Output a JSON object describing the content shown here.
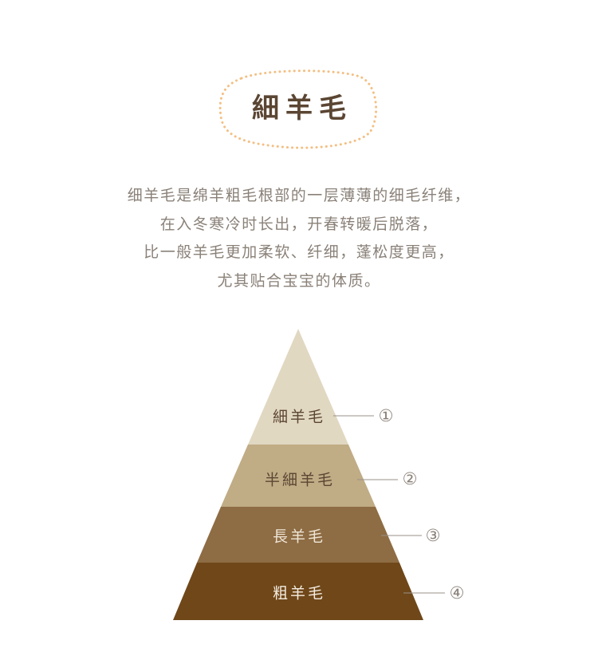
{
  "title": "細羊毛",
  "description": [
    "细羊毛是绵羊粗毛根部的一层薄薄的细毛纤维，",
    "在入冬寒冷时长出，开春转暖后脱落，",
    "比一般羊毛更加柔软、纤细，蓬松度更高，",
    "尤其贴合宝宝的体质。"
  ],
  "pyramid": {
    "layers": [
      {
        "label": "細羊毛",
        "marker": "①",
        "fill": "#e1d8c2",
        "text_color": "#5b4633"
      },
      {
        "label": "半細羊毛",
        "marker": "②",
        "fill": "#c0ac85",
        "text_color": "#5b4633"
      },
      {
        "label": "長羊毛",
        "marker": "③",
        "fill": "#8e6c44",
        "text_color": "#efe6d6"
      },
      {
        "label": "粗羊毛",
        "marker": "④",
        "fill": "#6f4719",
        "text_color": "#f4ece0"
      }
    ]
  },
  "colors": {
    "title": "#5b4633",
    "title_border_dots": "#f3bf83",
    "description_text": "#8a8178",
    "leader_line": "#9a9189"
  }
}
